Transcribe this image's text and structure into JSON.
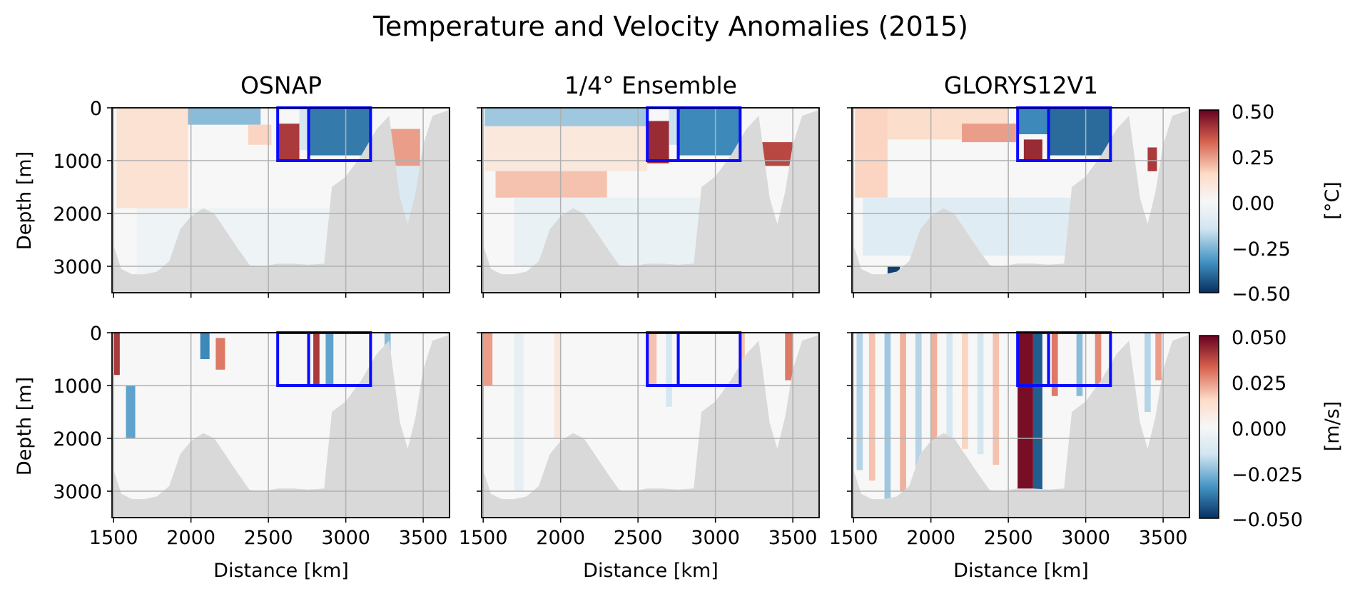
{
  "title": "Temperature and Velocity Anomalies (2015)",
  "panel_titles": [
    "OSNAP",
    "1/4° Ensemble",
    "GLORYS12V1"
  ],
  "colors": {
    "land": "#d9d9d9",
    "grid": "#b0b0b0",
    "box": "#0a0aff",
    "cmap_dark_red": "#67001f",
    "cmap_red": "#d6604d",
    "cmap_light_red": "#fddbc7",
    "cmap_white": "#f7f7f7",
    "cmap_light_blue": "#d1e5f0",
    "cmap_blue": "#4393c3",
    "cmap_dark_blue": "#053061"
  },
  "chart_data": [
    {
      "type": "heatmap",
      "row": "temperature",
      "variable": "Temperature anomaly",
      "xlabel": "Distance [km]",
      "ylabel": "Depth [m]",
      "xlim": [
        1490,
        3670
      ],
      "ylim": [
        3500,
        0
      ],
      "xticks": [
        1500,
        2000,
        2500,
        3000,
        3500
      ],
      "yticks": [
        0,
        1000,
        2000,
        3000
      ],
      "colorbar": {
        "label": "[°C]",
        "vmin": -0.5,
        "vmax": 0.5,
        "ticks": [
          "0.50",
          "0.25",
          "0.00",
          "−0.25",
          "−0.50"
        ]
      },
      "boxes": [
        [
          2560,
          2760,
          0,
          1000
        ],
        [
          2760,
          3160,
          0,
          1000
        ]
      ],
      "datasets": [
        "OSNAP",
        "1/4° Ensemble",
        "GLORYS12V1"
      ]
    },
    {
      "type": "heatmap",
      "row": "velocity",
      "variable": "Velocity anomaly",
      "xlabel": "Distance [km]",
      "ylabel": "Depth [m]",
      "xlim": [
        1490,
        3670
      ],
      "ylim": [
        3500,
        0
      ],
      "xticks": [
        1500,
        2000,
        2500,
        3000,
        3500
      ],
      "yticks": [
        0,
        1000,
        2000,
        3000
      ],
      "colorbar": {
        "label": "[m/s]",
        "vmin": -0.05,
        "vmax": 0.05,
        "ticks": [
          "0.050",
          "0.025",
          "0.000",
          "−0.025",
          "−0.050"
        ]
      },
      "boxes": [
        [
          2560,
          2760,
          0,
          1000
        ],
        [
          2760,
          3160,
          0,
          1000
        ]
      ],
      "datasets": [
        "OSNAP",
        "1/4° Ensemble",
        "GLORYS12V1"
      ]
    }
  ]
}
